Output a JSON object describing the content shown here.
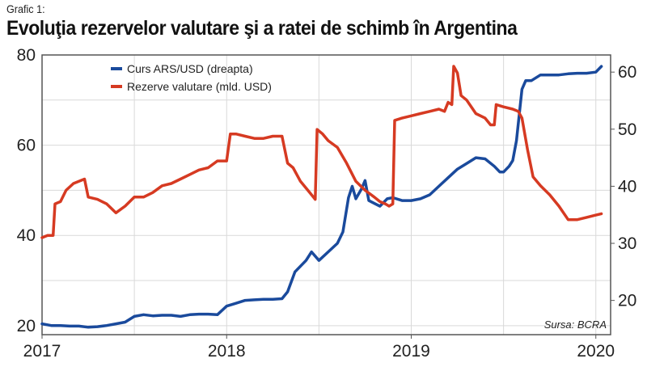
{
  "figure_label": "Grafic 1:",
  "title": "Evoluţia rezervelor valutare şi a ratei de schimb în Argentina",
  "source": "Sursa: BCRA",
  "colors": {
    "blue": "#1a4a9c",
    "red": "#d63a22",
    "grid": "#d9d9d9",
    "axis": "#555555"
  },
  "chart_data": {
    "type": "line",
    "title": "Evoluţia rezervelor valutare şi a ratei de schimb în Argentina",
    "legend_position": "top-left",
    "grid": true,
    "x_axis": {
      "ticks": [
        "2017",
        "2018",
        "2019",
        "2020"
      ],
      "range": [
        2017.0,
        2020.08
      ]
    },
    "y_left": {
      "ticks": [
        20,
        40,
        60,
        80
      ],
      "range": [
        18,
        80
      ]
    },
    "y_right": {
      "ticks": [
        20,
        30,
        40,
        50,
        60
      ],
      "range": [
        14,
        63
      ]
    },
    "series": [
      {
        "name": "Curs ARS/USD (dreapta)",
        "axis": "right",
        "color": "#1a4a9c",
        "points": [
          [
            2017.0,
            15.9
          ],
          [
            2017.05,
            15.6
          ],
          [
            2017.1,
            15.6
          ],
          [
            2017.15,
            15.5
          ],
          [
            2017.2,
            15.5
          ],
          [
            2017.25,
            15.3
          ],
          [
            2017.3,
            15.4
          ],
          [
            2017.35,
            15.6
          ],
          [
            2017.4,
            15.9
          ],
          [
            2017.45,
            16.2
          ],
          [
            2017.5,
            17.2
          ],
          [
            2017.55,
            17.5
          ],
          [
            2017.6,
            17.3
          ],
          [
            2017.65,
            17.4
          ],
          [
            2017.7,
            17.4
          ],
          [
            2017.75,
            17.2
          ],
          [
            2017.8,
            17.5
          ],
          [
            2017.85,
            17.6
          ],
          [
            2017.9,
            17.6
          ],
          [
            2017.95,
            17.5
          ],
          [
            2018.0,
            19.0
          ],
          [
            2018.05,
            19.5
          ],
          [
            2018.1,
            20.0
          ],
          [
            2018.15,
            20.1
          ],
          [
            2018.2,
            20.2
          ],
          [
            2018.25,
            20.2
          ],
          [
            2018.3,
            20.3
          ],
          [
            2018.33,
            21.5
          ],
          [
            2018.37,
            25.0
          ],
          [
            2018.4,
            26.0
          ],
          [
            2018.43,
            27.0
          ],
          [
            2018.46,
            28.5
          ],
          [
            2018.5,
            27.0
          ],
          [
            2018.55,
            28.5
          ],
          [
            2018.6,
            30.0
          ],
          [
            2018.63,
            32.0
          ],
          [
            2018.66,
            38.0
          ],
          [
            2018.68,
            40.0
          ],
          [
            2018.7,
            37.8
          ],
          [
            2018.73,
            39.5
          ],
          [
            2018.75,
            41.0
          ],
          [
            2018.77,
            37.5
          ],
          [
            2018.8,
            37.0
          ],
          [
            2018.83,
            36.5
          ],
          [
            2018.87,
            37.8
          ],
          [
            2018.9,
            38.0
          ],
          [
            2018.95,
            37.5
          ],
          [
            2019.0,
            37.5
          ],
          [
            2019.05,
            37.8
          ],
          [
            2019.1,
            38.5
          ],
          [
            2019.15,
            40.0
          ],
          [
            2019.2,
            41.5
          ],
          [
            2019.25,
            43.0
          ],
          [
            2019.3,
            44.0
          ],
          [
            2019.35,
            45.0
          ],
          [
            2019.4,
            44.8
          ],
          [
            2019.45,
            43.5
          ],
          [
            2019.48,
            42.5
          ],
          [
            2019.5,
            42.5
          ],
          [
            2019.53,
            43.5
          ],
          [
            2019.55,
            44.5
          ],
          [
            2019.57,
            48.0
          ],
          [
            2019.6,
            57.0
          ],
          [
            2019.62,
            58.5
          ],
          [
            2019.65,
            58.5
          ],
          [
            2019.7,
            59.5
          ],
          [
            2019.75,
            59.5
          ],
          [
            2019.8,
            59.5
          ],
          [
            2019.85,
            59.7
          ],
          [
            2019.9,
            59.8
          ],
          [
            2019.95,
            59.8
          ],
          [
            2020.0,
            60.0
          ],
          [
            2020.03,
            61.0
          ]
        ]
      },
      {
        "name": "Rezerve valutare (mld. USD)",
        "axis": "left",
        "color": "#d63a22",
        "points": [
          [
            2017.0,
            39.5
          ],
          [
            2017.03,
            40.0
          ],
          [
            2017.06,
            40.0
          ],
          [
            2017.07,
            47.0
          ],
          [
            2017.1,
            47.5
          ],
          [
            2017.13,
            50.0
          ],
          [
            2017.17,
            51.5
          ],
          [
            2017.2,
            52.0
          ],
          [
            2017.23,
            52.5
          ],
          [
            2017.25,
            48.5
          ],
          [
            2017.3,
            48.0
          ],
          [
            2017.35,
            47.0
          ],
          [
            2017.4,
            45.0
          ],
          [
            2017.45,
            46.5
          ],
          [
            2017.5,
            48.5
          ],
          [
            2017.55,
            48.5
          ],
          [
            2017.6,
            49.5
          ],
          [
            2017.65,
            51.0
          ],
          [
            2017.7,
            51.5
          ],
          [
            2017.75,
            52.5
          ],
          [
            2017.8,
            53.5
          ],
          [
            2017.85,
            54.5
          ],
          [
            2017.9,
            55.0
          ],
          [
            2017.95,
            56.5
          ],
          [
            2018.0,
            56.5
          ],
          [
            2018.02,
            62.5
          ],
          [
            2018.05,
            62.5
          ],
          [
            2018.1,
            62.0
          ],
          [
            2018.15,
            61.5
          ],
          [
            2018.2,
            61.5
          ],
          [
            2018.25,
            62.0
          ],
          [
            2018.3,
            62.0
          ],
          [
            2018.33,
            56.0
          ],
          [
            2018.36,
            55.0
          ],
          [
            2018.4,
            52.0
          ],
          [
            2018.45,
            49.5
          ],
          [
            2018.48,
            48.0
          ],
          [
            2018.49,
            63.5
          ],
          [
            2018.52,
            62.5
          ],
          [
            2018.55,
            61.0
          ],
          [
            2018.6,
            59.5
          ],
          [
            2018.65,
            56.0
          ],
          [
            2018.7,
            52.0
          ],
          [
            2018.75,
            50.0
          ],
          [
            2018.8,
            48.5
          ],
          [
            2018.83,
            47.5
          ],
          [
            2018.86,
            47.0
          ],
          [
            2018.88,
            46.5
          ],
          [
            2018.9,
            47.0
          ],
          [
            2018.91,
            65.5
          ],
          [
            2018.95,
            66.0
          ],
          [
            2019.0,
            66.5
          ],
          [
            2019.05,
            67.0
          ],
          [
            2019.1,
            67.5
          ],
          [
            2019.15,
            68.0
          ],
          [
            2019.18,
            67.5
          ],
          [
            2019.2,
            69.5
          ],
          [
            2019.22,
            69.0
          ],
          [
            2019.23,
            77.5
          ],
          [
            2019.25,
            76.0
          ],
          [
            2019.27,
            71.0
          ],
          [
            2019.3,
            70.0
          ],
          [
            2019.35,
            67.0
          ],
          [
            2019.4,
            66.0
          ],
          [
            2019.43,
            64.5
          ],
          [
            2019.45,
            64.5
          ],
          [
            2019.46,
            69.0
          ],
          [
            2019.5,
            68.5
          ],
          [
            2019.55,
            68.0
          ],
          [
            2019.58,
            67.5
          ],
          [
            2019.6,
            66.0
          ],
          [
            2019.63,
            59.0
          ],
          [
            2019.66,
            53.0
          ],
          [
            2019.7,
            51.0
          ],
          [
            2019.75,
            49.0
          ],
          [
            2019.8,
            46.5
          ],
          [
            2019.85,
            43.5
          ],
          [
            2019.9,
            43.5
          ],
          [
            2019.95,
            44.0
          ],
          [
            2020.0,
            44.5
          ],
          [
            2020.03,
            44.8
          ]
        ]
      }
    ]
  }
}
